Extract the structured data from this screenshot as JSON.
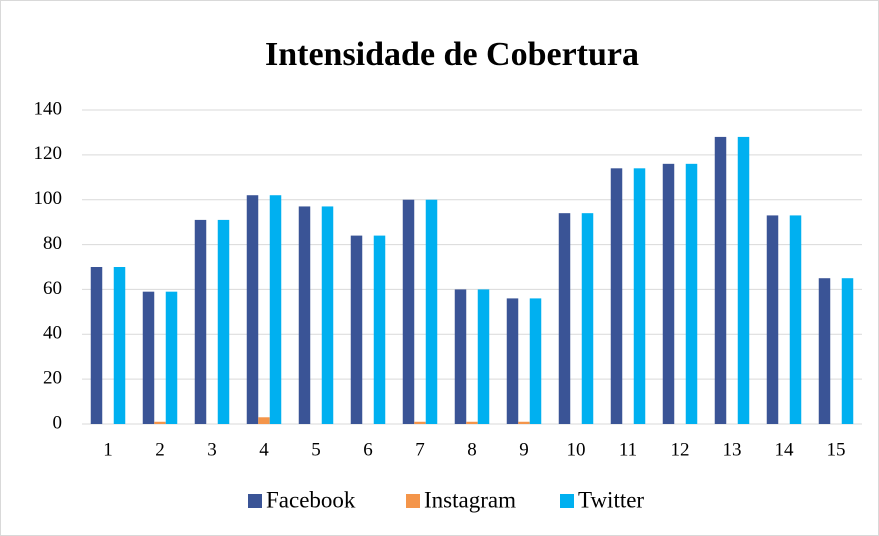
{
  "chart_data": {
    "type": "bar",
    "title": "Intensidade de Cobertura",
    "categories": [
      "1",
      "2",
      "3",
      "4",
      "5",
      "6",
      "7",
      "8",
      "9",
      "10",
      "11",
      "12",
      "13",
      "14",
      "15"
    ],
    "series": [
      {
        "name": "Facebook",
        "color": "#3a5496",
        "values": [
          70,
          59,
          91,
          102,
          97,
          84,
          100,
          60,
          56,
          94,
          114,
          116,
          128,
          93,
          65
        ]
      },
      {
        "name": "Instagram",
        "color": "#f4954a",
        "values": [
          0,
          1,
          0,
          3,
          0,
          0,
          1,
          1,
          1,
          0,
          0,
          0,
          0,
          0,
          0
        ]
      },
      {
        "name": "Twitter",
        "color": "#00b0f0",
        "values": [
          70,
          59,
          91,
          102,
          97,
          84,
          100,
          60,
          56,
          94,
          114,
          116,
          128,
          93,
          65
        ]
      }
    ],
    "ylim": [
      0,
      140
    ],
    "yticks": [
      0,
      20,
      40,
      60,
      80,
      100,
      120,
      140
    ],
    "grid": true,
    "legend": "bottom"
  }
}
